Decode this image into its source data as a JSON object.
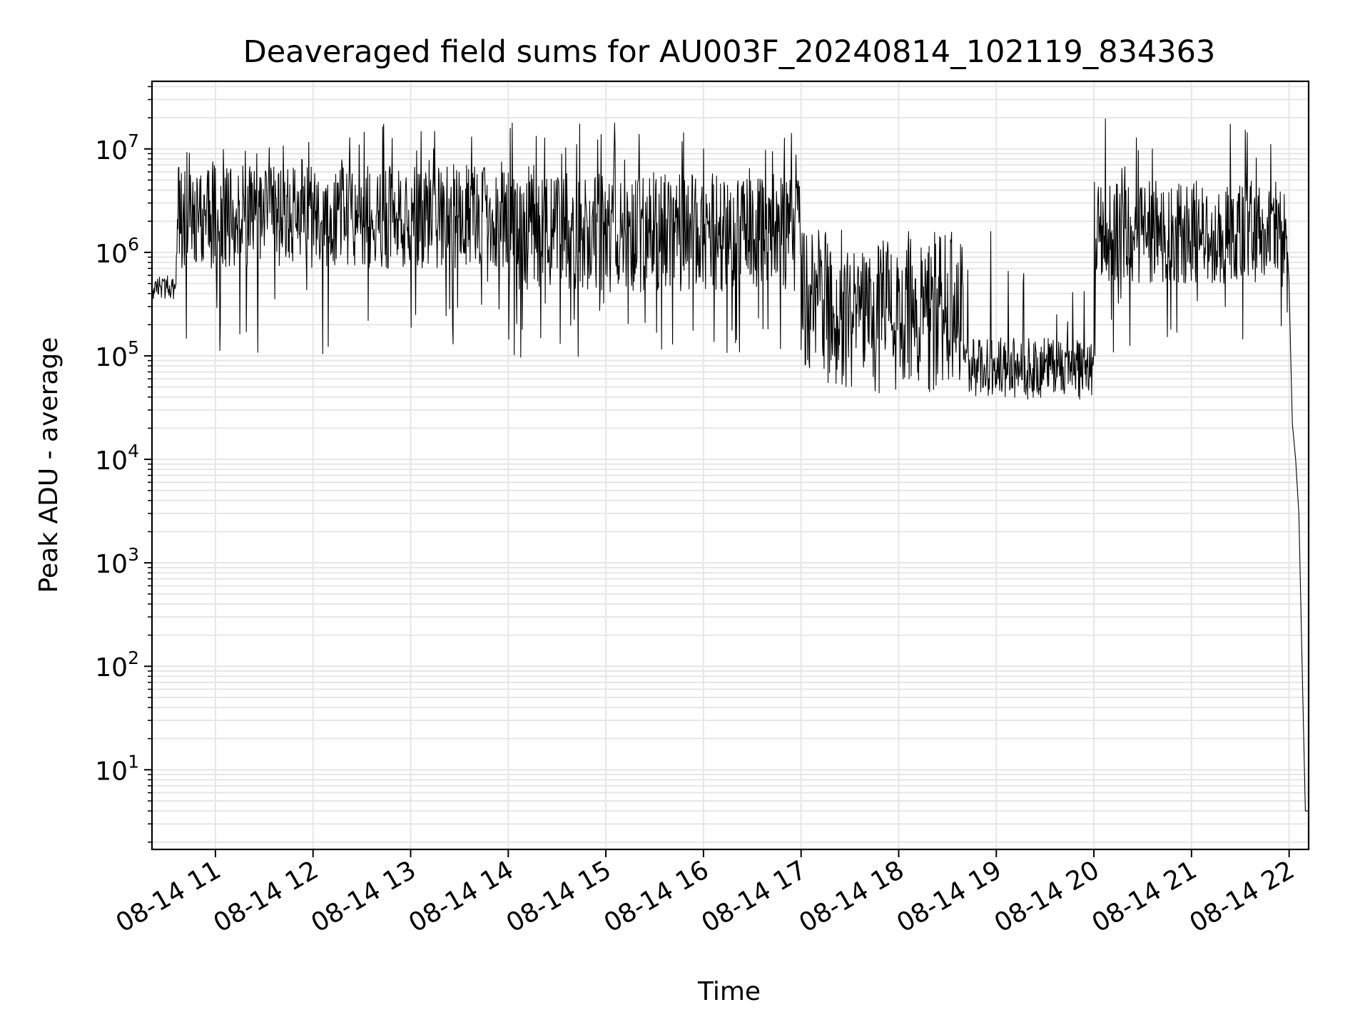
{
  "chart_data": {
    "type": "line",
    "title": "Deaveraged field sums for AU003F_20240814_102119_834363",
    "xlabel": "Time",
    "ylabel": "Peak ADU - average",
    "yscale": "log",
    "ylim": [
      1.7,
      45000000
    ],
    "xlim": [
      "2024-08-14 10:21",
      "2024-08-14 22:12"
    ],
    "grid": true,
    "line_color": "#000000",
    "x_ticks": [
      {
        "label": "08-14 11",
        "value": "2024-08-14 11:00"
      },
      {
        "label": "08-14 12",
        "value": "2024-08-14 12:00"
      },
      {
        "label": "08-14 13",
        "value": "2024-08-14 13:00"
      },
      {
        "label": "08-14 14",
        "value": "2024-08-14 14:00"
      },
      {
        "label": "08-14 15",
        "value": "2024-08-14 15:00"
      },
      {
        "label": "08-14 16",
        "value": "2024-08-14 16:00"
      },
      {
        "label": "08-14 17",
        "value": "2024-08-14 17:00"
      },
      {
        "label": "08-14 18",
        "value": "2024-08-14 18:00"
      },
      {
        "label": "08-14 19",
        "value": "2024-08-14 19:00"
      },
      {
        "label": "08-14 20",
        "value": "2024-08-14 20:00"
      },
      {
        "label": "08-14 21",
        "value": "2024-08-14 21:00"
      },
      {
        "label": "08-14 22",
        "value": "2024-08-14 22:00"
      }
    ],
    "y_ticks": [
      {
        "base": "10",
        "exp": "1",
        "value": 10
      },
      {
        "base": "10",
        "exp": "2",
        "value": 100
      },
      {
        "base": "10",
        "exp": "3",
        "value": 1000
      },
      {
        "base": "10",
        "exp": "4",
        "value": 10000
      },
      {
        "base": "10",
        "exp": "5",
        "value": 100000
      },
      {
        "base": "10",
        "exp": "6",
        "value": 1000000
      },
      {
        "base": "10",
        "exp": "7",
        "value": 10000000
      }
    ],
    "segments": [
      {
        "start": "2024-08-14 10:21",
        "end": "2024-08-14 10:36",
        "low": 350000,
        "high": 600000,
        "spike_high": 800000,
        "dip_low": 300000
      },
      {
        "start": "2024-08-14 10:36",
        "end": "2024-08-14 14:00",
        "low": 700000,
        "high": 7000000,
        "spike_high": 18000000,
        "dip_low": 100000
      },
      {
        "start": "2024-08-14 14:00",
        "end": "2024-08-14 17:00",
        "low": 400000,
        "high": 6000000,
        "spike_high": 18000000,
        "dip_low": 90000
      },
      {
        "start": "2024-08-14 17:00",
        "end": "2024-08-14 17:40",
        "low": 70000,
        "high": 1500000,
        "spike_high": 1700000,
        "dip_low": 50000
      },
      {
        "start": "2024-08-14 17:40",
        "end": "2024-08-14 18:40",
        "low": 55000,
        "high": 1200000,
        "spike_high": 1700000,
        "dip_low": 42000
      },
      {
        "start": "2024-08-14 18:40",
        "end": "2024-08-14 20:00",
        "low": 45000,
        "high": 150000,
        "spike_high": 1700000,
        "dip_low": 38000
      },
      {
        "start": "2024-08-14 20:00",
        "end": "2024-08-14 21:59",
        "low": 500000,
        "high": 5000000,
        "spike_high": 21000000,
        "dip_low": 100000
      }
    ],
    "tail": [
      {
        "x": "2024-08-14 21:59",
        "y": 1000000
      },
      {
        "x": "2024-08-14 22:00",
        "y": 500000
      },
      {
        "x": "2024-08-14 22:01",
        "y": 100000
      },
      {
        "x": "2024-08-14 22:02",
        "y": 22000
      },
      {
        "x": "2024-08-14 22:04",
        "y": 10000
      },
      {
        "x": "2024-08-14 22:06",
        "y": 3000
      },
      {
        "x": "2024-08-14 22:08",
        "y": 100
      },
      {
        "x": "2024-08-14 22:10",
        "y": 4
      },
      {
        "x": "2024-08-14 22:12",
        "y": 4
      }
    ]
  }
}
